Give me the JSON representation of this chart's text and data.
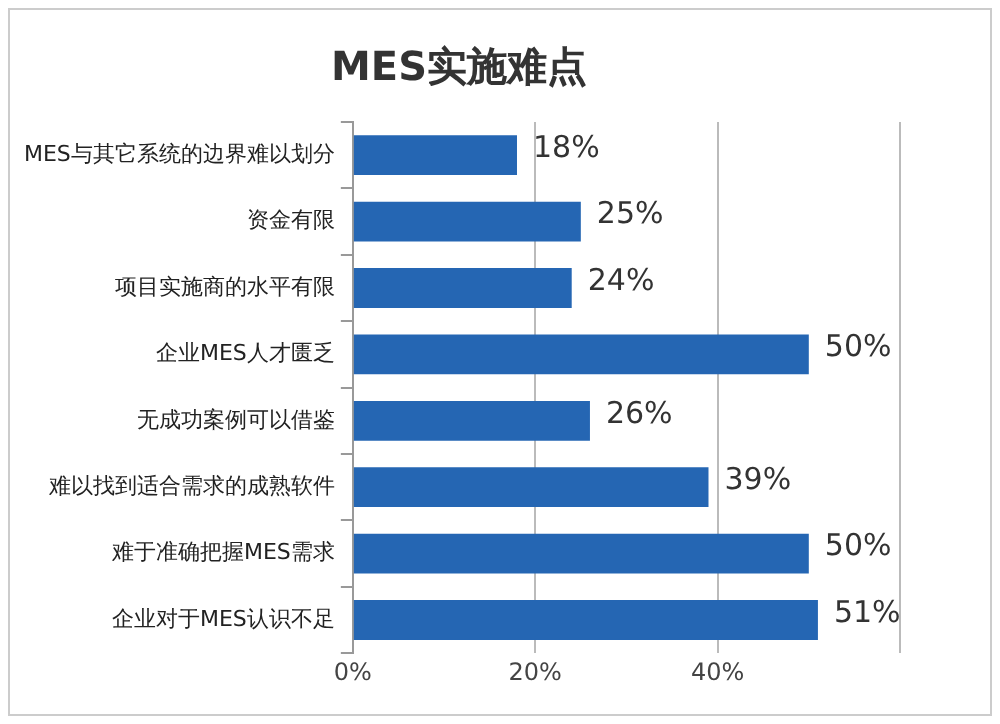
{
  "chart_data": {
    "type": "bar",
    "orientation": "horizontal",
    "title": "MES实施难点",
    "categories": [
      "MES与其它系统的边界难以划分",
      "资金有限",
      "项目实施商的水平有限",
      "企业MES人才匮乏",
      "无成功案例可以借鉴",
      "难以找到适合需求的成熟软件",
      "难于准确把握MES需求",
      "企业对于MES认识不足"
    ],
    "values": [
      18,
      25,
      24,
      50,
      26,
      39,
      50,
      51
    ],
    "value_labels": [
      "18%",
      "25%",
      "24%",
      "50%",
      "26%",
      "39%",
      "50%",
      "51%"
    ],
    "color": "#2566b3",
    "xlim": [
      0,
      60
    ],
    "xticks": [
      {
        "value": 0,
        "label": "0%"
      },
      {
        "value": 20,
        "label": "20%"
      },
      {
        "value": 40,
        "label": "40%"
      },
      {
        "value": 60,
        "label": null
      }
    ],
    "grid": "x",
    "legend": false
  }
}
